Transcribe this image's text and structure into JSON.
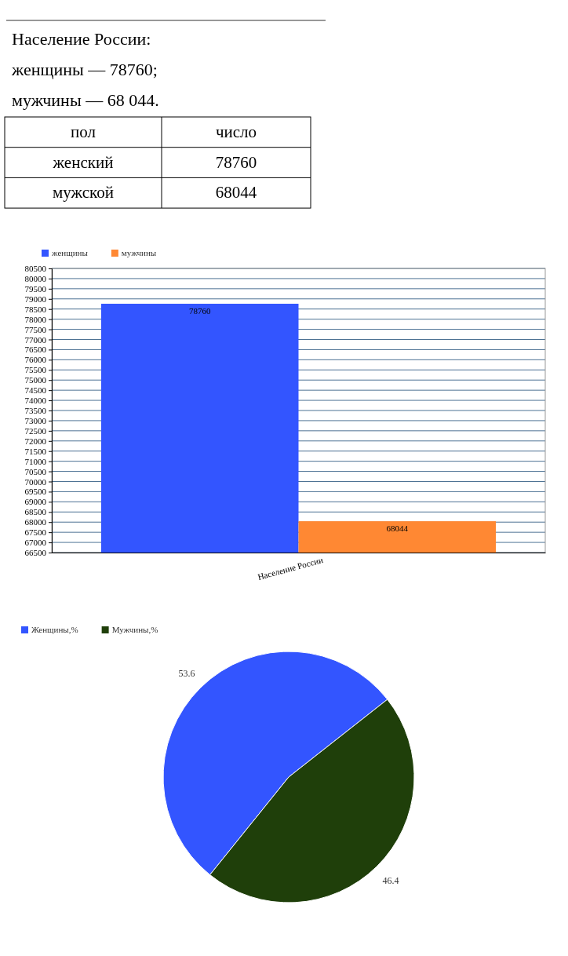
{
  "chart_data": [
    {
      "type": "other",
      "title": "Население России:",
      "annotations": [
        "женщины — 78760;",
        "мужчины — 68 044.",
        "пол",
        "число",
        "женский",
        "78760",
        "мужской",
        "68044"
      ]
    },
    {
      "type": "bar",
      "categories": [
        "Население России"
      ],
      "series": [
        {
          "name": "женщины",
          "color": "#3355ff",
          "values": [
            78760
          ]
        },
        {
          "name": "мужчины",
          "color": "#ff8833",
          "values": [
            68044
          ]
        }
      ],
      "ylim": [
        66500,
        80500
      ],
      "yticks": [
        66500,
        67000,
        67500,
        68000,
        68500,
        69000,
        69500,
        70000,
        70500,
        71000,
        71500,
        72000,
        72500,
        73000,
        73500,
        74000,
        74500,
        75000,
        75500,
        76000,
        76500,
        77000,
        77500,
        78000,
        78500,
        79000,
        79500,
        80000,
        80500
      ],
      "grid": "y",
      "legend": "top left",
      "data_labels": true
    },
    {
      "type": "pie",
      "categories": [
        "Женщины,%",
        "Мужчины,%"
      ],
      "values": [
        53.6,
        46.4
      ],
      "colors": [
        "#3355ff",
        "#1f3f0a"
      ],
      "legend": "top left",
      "data_labels": true
    }
  ]
}
